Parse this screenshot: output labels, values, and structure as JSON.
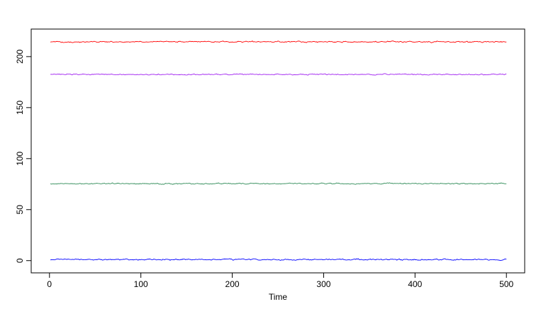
{
  "chart_data": {
    "type": "line",
    "title": "",
    "xlabel": "Time",
    "ylabel": "",
    "xlim": [
      -20,
      520
    ],
    "ylim": [
      -12,
      227
    ],
    "x_ticks": [
      0,
      100,
      200,
      300,
      400,
      500
    ],
    "y_ticks": [
      0,
      50,
      100,
      150,
      200
    ],
    "x_tick_labels": [
      "0",
      "100",
      "200",
      "300",
      "400",
      "500"
    ],
    "y_tick_labels": [
      "0",
      "50",
      "100",
      "150",
      "200"
    ],
    "grid": false,
    "legend": "none",
    "x_start": 1,
    "x_end": 500,
    "series": [
      {
        "color": "#ff0000",
        "mean": 214.5,
        "noise_amplitude": 1.0
      },
      {
        "color": "#a020f0",
        "mean": 182.5,
        "noise_amplitude": 0.9
      },
      {
        "color": "#2e8b57",
        "mean": 75.5,
        "noise_amplitude": 0.9
      },
      {
        "color": "#0000ff",
        "mean": 1.0,
        "noise_amplitude": 1.0
      }
    ]
  }
}
